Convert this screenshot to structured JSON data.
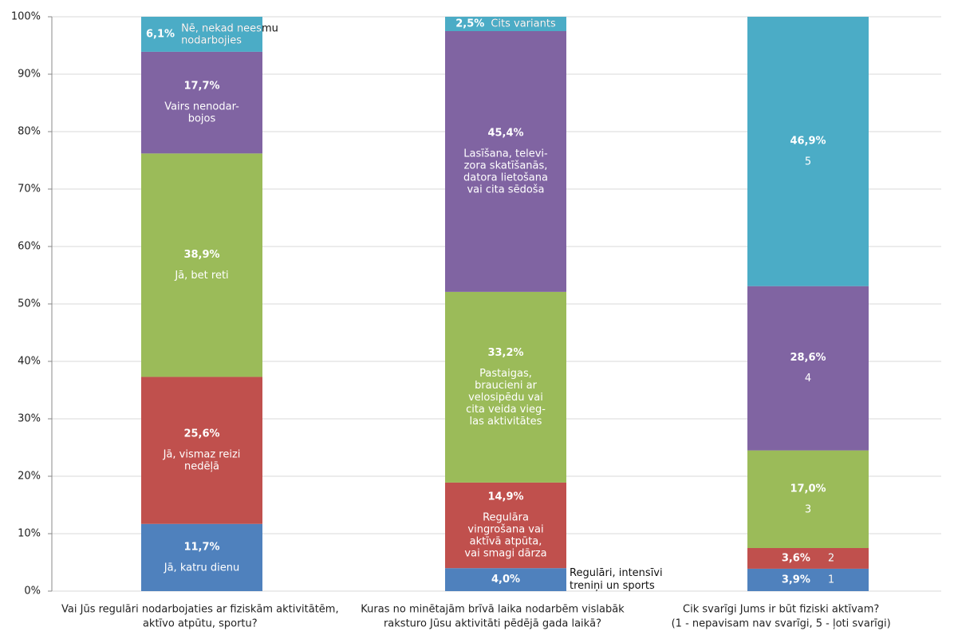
{
  "chart_data": {
    "type": "stacked_bar",
    "categories": [
      [
        "Vai Jūs regulāri nodarbojaties ar fiziskām aktivitātēm,",
        "aktīvo atpūtu, sportu?"
      ],
      [
        "Kuras no minētajām brīvā laika nodarbēm vislabāk",
        "raksturo Jūsu aktivitāti pēdējā gada laikā?"
      ],
      [
        "Cik svarīgi Jums ir būt fiziski aktīvam?",
        "(1 - nepavisam nav svarīgi, 5 - ļoti svarīgi)"
      ]
    ],
    "stacks": [
      [
        {
          "value": 11.7,
          "value_label": "11,7%",
          "label": [
            "Jā, katru dienu"
          ],
          "color": "#4f81bd"
        },
        {
          "value": 25.6,
          "value_label": "25,6%",
          "label": [
            "Jā, vismaz reizi",
            "nedēļā"
          ],
          "color": "#c0504d"
        },
        {
          "value": 38.9,
          "value_label": "38,9%",
          "label": [
            "Jā, bet reti"
          ],
          "color": "#9bbb59"
        },
        {
          "value": 17.7,
          "value_label": "17,7%",
          "label": [
            "Vairs nenodar-",
            "bojos"
          ],
          "color": "#8064a2"
        },
        {
          "value": 6.1,
          "value_label": "6,1%",
          "label": [
            "Nē, nekad neesmu",
            "nodarbojies"
          ],
          "color": "#4bacc6"
        }
      ],
      [
        {
          "value": 4.0,
          "value_label": "4,0%",
          "label": [
            "Regulāri, intensīvi",
            "treniņi un sports"
          ],
          "color": "#4f81bd"
        },
        {
          "value": 14.9,
          "value_label": "14,9%",
          "label": [
            "Regulāra",
            "vingrošana vai",
            "aktīvā atpūta,",
            "vai smagi dārza"
          ],
          "color": "#c0504d"
        },
        {
          "value": 33.2,
          "value_label": "33,2%",
          "label": [
            "Pastaigas,",
            "braucieni ar",
            "velosipēdu vai",
            "cita veida vieg-",
            "las aktivitātes"
          ],
          "color": "#9bbb59"
        },
        {
          "value": 45.4,
          "value_label": "45,4%",
          "label": [
            "Lasīšana, televi-",
            "zora skatīšanās,",
            "datora lietošana",
            "vai cita sēdoša"
          ],
          "color": "#8064a2"
        },
        {
          "value": 2.5,
          "value_label": "2,5%",
          "label": [
            "Cits variants"
          ],
          "color": "#4bacc6"
        }
      ],
      [
        {
          "value": 3.9,
          "value_label": "3,9%",
          "label": [
            "1"
          ],
          "color": "#4f81bd"
        },
        {
          "value": 3.6,
          "value_label": "3,6%",
          "label": [
            "2"
          ],
          "color": "#c0504d"
        },
        {
          "value": 17.0,
          "value_label": "17,0%",
          "label": [
            "3"
          ],
          "color": "#9bbb59"
        },
        {
          "value": 28.6,
          "value_label": "28,6%",
          "label": [
            "4"
          ],
          "color": "#8064a2"
        },
        {
          "value": 46.9,
          "value_label": "46,9%",
          "label": [
            "5"
          ],
          "color": "#4bacc6"
        }
      ]
    ],
    "ylim": [
      0,
      100
    ],
    "yticks": [
      {
        "value": 0,
        "label": "0%"
      },
      {
        "value": 10,
        "label": "10%"
      },
      {
        "value": 20,
        "label": "20%"
      },
      {
        "value": 30,
        "label": "30%"
      },
      {
        "value": 40,
        "label": "40%"
      },
      {
        "value": 50,
        "label": "50%"
      },
      {
        "value": 60,
        "label": "60%"
      },
      {
        "value": 70,
        "label": "70%"
      },
      {
        "value": 80,
        "label": "80%"
      },
      {
        "value": 90,
        "label": "90%"
      },
      {
        "value": 100,
        "label": "100%"
      }
    ],
    "grid": true
  }
}
